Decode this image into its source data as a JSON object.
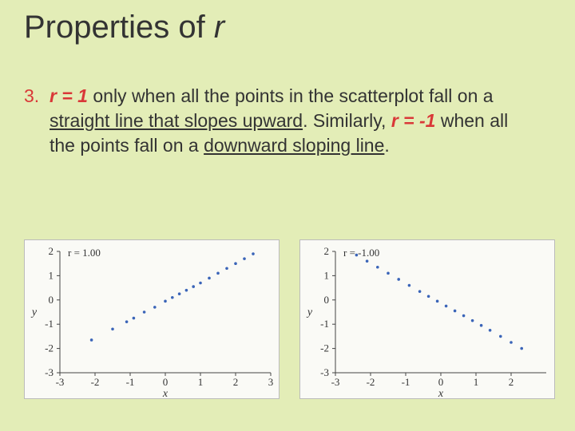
{
  "title": {
    "prefix": "Properties of ",
    "var": "r"
  },
  "list": {
    "number": "3.",
    "seg1_boldital": "r = 1",
    "seg2": "  only when all the points in the scatterplot fall on a ",
    "seg3_ul": "straight line that slopes upward",
    "seg4": ".  Similarly, ",
    "seg5_boldital": "r = -1",
    "seg6": "  when all the points fall on a ",
    "seg7_ul": "downward sloping line",
    "seg8": "."
  },
  "charts": {
    "left": {
      "anno": "r = 1.00",
      "xlabel": "x",
      "ylabel": "y",
      "xlim": [
        -3,
        3
      ],
      "ylim": [
        -3,
        2
      ],
      "xticks": [
        -3,
        -2,
        -1,
        0,
        1,
        2,
        3
      ],
      "yticks": [
        -3,
        -2,
        -1,
        0,
        1,
        2
      ],
      "point_color": "#3a64b8",
      "point_radius": 1.8,
      "background_color": "#fafaf6",
      "points": [
        [
          -2.1,
          -1.65
        ],
        [
          -1.5,
          -1.2
        ],
        [
          -1.1,
          -0.9
        ],
        [
          -0.9,
          -0.75
        ],
        [
          -0.6,
          -0.5
        ],
        [
          -0.3,
          -0.3
        ],
        [
          0.0,
          -0.05
        ],
        [
          0.2,
          0.1
        ],
        [
          0.4,
          0.25
        ],
        [
          0.6,
          0.4
        ],
        [
          0.8,
          0.55
        ],
        [
          1.0,
          0.7
        ],
        [
          1.25,
          0.9
        ],
        [
          1.5,
          1.1
        ],
        [
          1.75,
          1.3
        ],
        [
          2.0,
          1.5
        ],
        [
          2.25,
          1.7
        ],
        [
          2.5,
          1.9
        ]
      ]
    },
    "right": {
      "anno": "r = -1.00",
      "xlabel": "x",
      "ylabel": "y",
      "xlim": [
        -3,
        3
      ],
      "ylim": [
        -3,
        2
      ],
      "xticks": [
        -3,
        -2,
        -1,
        0,
        1,
        2
      ],
      "yticks": [
        -3,
        -2,
        -1,
        0,
        1,
        2
      ],
      "point_color": "#3a64b8",
      "point_radius": 1.8,
      "background_color": "#fafaf6",
      "points": [
        [
          -2.4,
          1.85
        ],
        [
          -2.1,
          1.6
        ],
        [
          -1.8,
          1.35
        ],
        [
          -1.5,
          1.1
        ],
        [
          -1.2,
          0.85
        ],
        [
          -0.9,
          0.6
        ],
        [
          -0.6,
          0.35
        ],
        [
          -0.35,
          0.15
        ],
        [
          -0.1,
          -0.05
        ],
        [
          0.15,
          -0.25
        ],
        [
          0.4,
          -0.45
        ],
        [
          0.65,
          -0.65
        ],
        [
          0.9,
          -0.85
        ],
        [
          1.15,
          -1.05
        ],
        [
          1.4,
          -1.25
        ],
        [
          1.7,
          -1.5
        ],
        [
          2.0,
          -1.75
        ],
        [
          2.3,
          -2.0
        ]
      ]
    }
  }
}
